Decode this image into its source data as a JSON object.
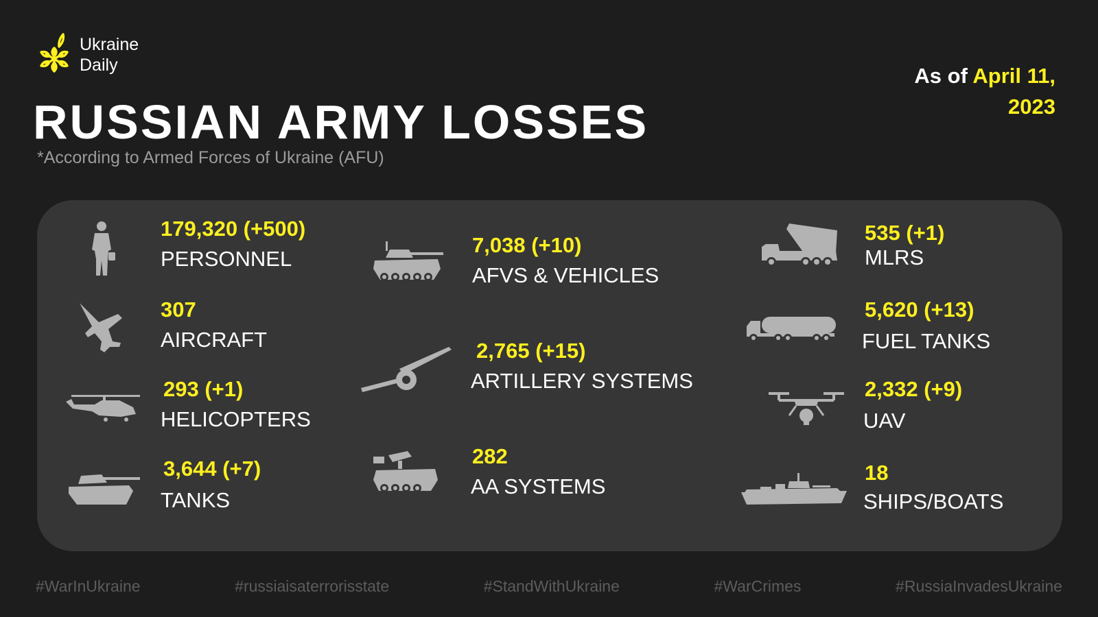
{
  "brand": {
    "line1": "Ukraine",
    "line2": "Daily",
    "accent_color": "#fff01f",
    "logo_icon": "snowflake-leaf-logo"
  },
  "date": {
    "prefix": "As of ",
    "value_line1": "April 11,",
    "value_line2": "2023"
  },
  "title": "RUSSIAN ARMY LOSSES",
  "subtitle": "*According to Armed Forces of Ukraine (AFU)",
  "items": [
    {
      "value": "179,320 (+500)",
      "label": "PERSONNEL",
      "icon": "soldier-icon"
    },
    {
      "value": "307",
      "label": "AIRCRAFT",
      "icon": "jet-aircraft-icon"
    },
    {
      "value": "293 (+1)",
      "label": "HELICOPTERS",
      "icon": "helicopter-icon"
    },
    {
      "value": "3,644 (+7)",
      "label": "TANKS",
      "icon": "tank-icon"
    },
    {
      "value": "7,038 (+10)",
      "label": "AFVS & VEHICLES",
      "icon": "armored-vehicle-icon"
    },
    {
      "value": "2,765 (+15)",
      "label": "ARTILLERY SYSTEMS",
      "icon": "artillery-cannon-icon"
    },
    {
      "value": "282",
      "label": "AA SYSTEMS",
      "icon": "anti-aircraft-vehicle-icon"
    },
    {
      "value": "535 (+1)",
      "label": "MLRS",
      "icon": "rocket-launcher-truck-icon"
    },
    {
      "value": "5,620 (+13)",
      "label": "FUEL TANKS",
      "icon": "fuel-truck-icon"
    },
    {
      "value": "2,332 (+9)",
      "label": "UAV",
      "icon": "drone-icon"
    },
    {
      "value": "18",
      "label": "SHIPS/BOATS",
      "icon": "warship-icon"
    }
  ],
  "hashtags": [
    "#WarInUkraine",
    "#russiaisaterrorisstate",
    "#StandWithUkraine",
    "#WarCrimes",
    "#RussiaInvadesUkraine"
  ]
}
